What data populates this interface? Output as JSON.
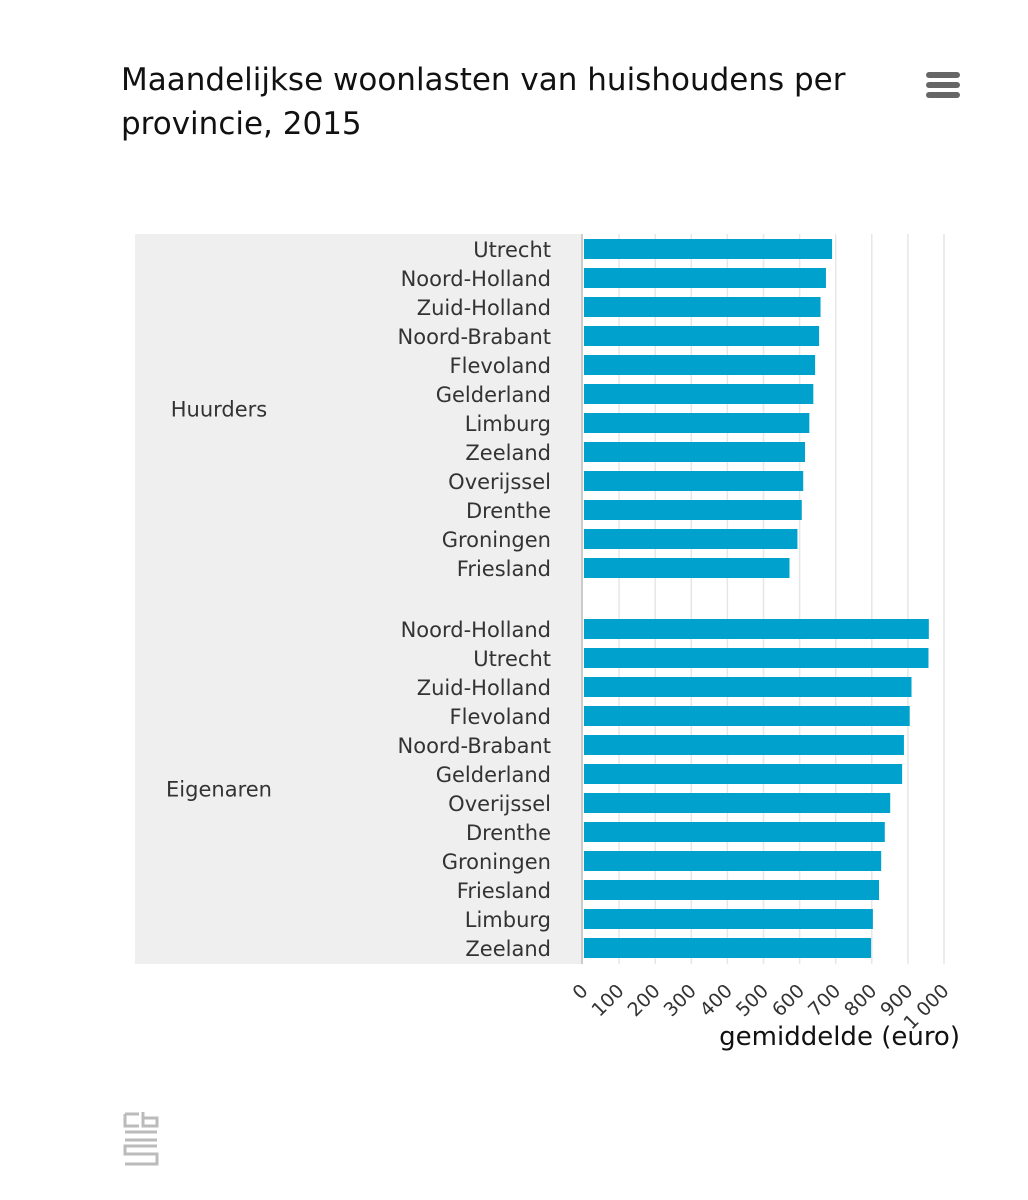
{
  "chart_data": {
    "type": "bar",
    "orientation": "horizontal",
    "title": "Maandelijkse woonlasten van huishoudens per provincie, 2015",
    "xlabel": "gemiddelde (euro)",
    "xlim": [
      0,
      1000
    ],
    "xticks": [
      "0",
      "100",
      "200",
      "300",
      "400",
      "500",
      "600",
      "700",
      "800",
      "900",
      "1 000"
    ],
    "grid": true,
    "groups": [
      {
        "name": "Huurders",
        "categories": [
          "Utrecht",
          "Noord-Holland",
          "Zuid-Holland",
          "Noord-Brabant",
          "Flevoland",
          "Gelderland",
          "Limburg",
          "Zeeland",
          "Overijssel",
          "Drenthe",
          "Groningen",
          "Friesland"
        ],
        "values": [
          690,
          673,
          658,
          654,
          643,
          638,
          627,
          615,
          610,
          606,
          594,
          572
        ]
      },
      {
        "name": "Eigenaren",
        "categories": [
          "Noord-Holland",
          "Utrecht",
          "Zuid-Holland",
          "Flevoland",
          "Noord-Brabant",
          "Gelderland",
          "Overijssel",
          "Drenthe",
          "Groningen",
          "Friesland",
          "Limburg",
          "Zeeland"
        ],
        "values": [
          958,
          957,
          910,
          905,
          889,
          884,
          851,
          836,
          826,
          820,
          803,
          798
        ]
      }
    ],
    "colors": {
      "bar": "#00a1cd",
      "plot_band": "#efefef",
      "grid": "#e6e6e6",
      "axis": "#cccccc"
    }
  },
  "icons": {
    "menu": "hamburger-menu-icon",
    "logo": "cbs-logo-icon"
  }
}
